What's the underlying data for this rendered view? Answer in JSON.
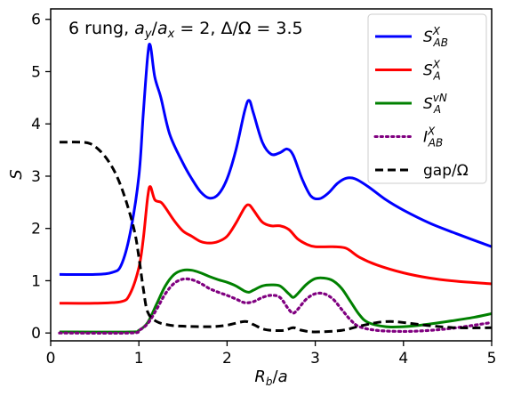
{
  "chart_data": {
    "type": "line",
    "title": "6 rung, a_y/a_x = 2, Δ/Ω = 3.5",
    "xlabel": "R_b/a",
    "ylabel": "S",
    "xlim": [
      0,
      5
    ],
    "ylim": [
      -0.15,
      6.2
    ],
    "xticks": [
      0,
      1,
      2,
      3,
      4,
      5
    ],
    "yticks": [
      0,
      1,
      2,
      3,
      4,
      5,
      6
    ],
    "grid": false,
    "legend_position": "top-right",
    "series": [
      {
        "name": "S^X_AB",
        "color": "#0000ff",
        "style": "solid",
        "points": [
          [
            0.1,
            1.12
          ],
          [
            0.5,
            1.12
          ],
          [
            0.7,
            1.16
          ],
          [
            0.8,
            1.3
          ],
          [
            0.9,
            1.9
          ],
          [
            1.0,
            3.0
          ],
          [
            1.05,
            4.2
          ],
          [
            1.1,
            5.3
          ],
          [
            1.13,
            5.5
          ],
          [
            1.18,
            4.9
          ],
          [
            1.25,
            4.5
          ],
          [
            1.35,
            3.8
          ],
          [
            1.5,
            3.25
          ],
          [
            1.6,
            2.95
          ],
          [
            1.7,
            2.7
          ],
          [
            1.8,
            2.58
          ],
          [
            1.9,
            2.65
          ],
          [
            2.0,
            2.95
          ],
          [
            2.1,
            3.5
          ],
          [
            2.2,
            4.25
          ],
          [
            2.25,
            4.45
          ],
          [
            2.3,
            4.2
          ],
          [
            2.4,
            3.65
          ],
          [
            2.5,
            3.42
          ],
          [
            2.6,
            3.45
          ],
          [
            2.68,
            3.52
          ],
          [
            2.75,
            3.4
          ],
          [
            2.85,
            2.95
          ],
          [
            2.95,
            2.62
          ],
          [
            3.05,
            2.57
          ],
          [
            3.15,
            2.68
          ],
          [
            3.25,
            2.86
          ],
          [
            3.35,
            2.96
          ],
          [
            3.45,
            2.95
          ],
          [
            3.6,
            2.8
          ],
          [
            3.8,
            2.55
          ],
          [
            4.0,
            2.35
          ],
          [
            4.3,
            2.1
          ],
          [
            4.6,
            1.9
          ],
          [
            5.0,
            1.65
          ]
        ]
      },
      {
        "name": "S^X_A",
        "color": "#ff0000",
        "style": "solid",
        "points": [
          [
            0.1,
            0.57
          ],
          [
            0.5,
            0.57
          ],
          [
            0.8,
            0.6
          ],
          [
            0.9,
            0.75
          ],
          [
            1.0,
            1.25
          ],
          [
            1.05,
            1.8
          ],
          [
            1.1,
            2.6
          ],
          [
            1.13,
            2.8
          ],
          [
            1.18,
            2.55
          ],
          [
            1.25,
            2.5
          ],
          [
            1.3,
            2.4
          ],
          [
            1.4,
            2.15
          ],
          [
            1.5,
            1.95
          ],
          [
            1.6,
            1.85
          ],
          [
            1.7,
            1.75
          ],
          [
            1.8,
            1.72
          ],
          [
            1.9,
            1.75
          ],
          [
            2.0,
            1.85
          ],
          [
            2.1,
            2.1
          ],
          [
            2.2,
            2.4
          ],
          [
            2.25,
            2.45
          ],
          [
            2.3,
            2.35
          ],
          [
            2.4,
            2.12
          ],
          [
            2.5,
            2.05
          ],
          [
            2.6,
            2.05
          ],
          [
            2.7,
            1.98
          ],
          [
            2.8,
            1.8
          ],
          [
            2.9,
            1.7
          ],
          [
            3.0,
            1.65
          ],
          [
            3.2,
            1.65
          ],
          [
            3.35,
            1.62
          ],
          [
            3.5,
            1.45
          ],
          [
            3.7,
            1.3
          ],
          [
            4.0,
            1.15
          ],
          [
            4.3,
            1.05
          ],
          [
            4.6,
            0.99
          ],
          [
            5.0,
            0.94
          ]
        ]
      },
      {
        "name": "S^vN_A",
        "color": "#008000",
        "style": "solid",
        "points": [
          [
            0.1,
            0.02
          ],
          [
            0.9,
            0.02
          ],
          [
            1.0,
            0.05
          ],
          [
            1.1,
            0.2
          ],
          [
            1.2,
            0.55
          ],
          [
            1.3,
            0.9
          ],
          [
            1.4,
            1.12
          ],
          [
            1.5,
            1.2
          ],
          [
            1.6,
            1.2
          ],
          [
            1.7,
            1.15
          ],
          [
            1.8,
            1.08
          ],
          [
            1.9,
            1.02
          ],
          [
            2.0,
            0.97
          ],
          [
            2.1,
            0.9
          ],
          [
            2.2,
            0.8
          ],
          [
            2.25,
            0.78
          ],
          [
            2.3,
            0.82
          ],
          [
            2.4,
            0.9
          ],
          [
            2.5,
            0.92
          ],
          [
            2.6,
            0.9
          ],
          [
            2.7,
            0.75
          ],
          [
            2.75,
            0.68
          ],
          [
            2.8,
            0.75
          ],
          [
            2.9,
            0.93
          ],
          [
            3.0,
            1.04
          ],
          [
            3.1,
            1.05
          ],
          [
            3.2,
            1.0
          ],
          [
            3.3,
            0.85
          ],
          [
            3.4,
            0.6
          ],
          [
            3.5,
            0.35
          ],
          [
            3.6,
            0.2
          ],
          [
            3.8,
            0.12
          ],
          [
            4.0,
            0.12
          ],
          [
            4.2,
            0.15
          ],
          [
            4.5,
            0.22
          ],
          [
            4.8,
            0.3
          ],
          [
            5.0,
            0.37
          ]
        ]
      },
      {
        "name": "I^X_AB",
        "color": "#800080",
        "style": "dotted",
        "points": [
          [
            0.1,
            0.0
          ],
          [
            0.9,
            0.0
          ],
          [
            1.0,
            0.05
          ],
          [
            1.1,
            0.18
          ],
          [
            1.2,
            0.45
          ],
          [
            1.3,
            0.75
          ],
          [
            1.4,
            0.95
          ],
          [
            1.5,
            1.03
          ],
          [
            1.6,
            1.02
          ],
          [
            1.7,
            0.95
          ],
          [
            1.8,
            0.85
          ],
          [
            1.9,
            0.78
          ],
          [
            2.0,
            0.72
          ],
          [
            2.1,
            0.65
          ],
          [
            2.2,
            0.58
          ],
          [
            2.3,
            0.6
          ],
          [
            2.4,
            0.68
          ],
          [
            2.5,
            0.72
          ],
          [
            2.6,
            0.68
          ],
          [
            2.7,
            0.45
          ],
          [
            2.75,
            0.38
          ],
          [
            2.8,
            0.45
          ],
          [
            2.9,
            0.65
          ],
          [
            3.0,
            0.75
          ],
          [
            3.1,
            0.75
          ],
          [
            3.2,
            0.65
          ],
          [
            3.3,
            0.45
          ],
          [
            3.4,
            0.25
          ],
          [
            3.5,
            0.12
          ],
          [
            3.7,
            0.05
          ],
          [
            4.0,
            0.03
          ],
          [
            4.3,
            0.05
          ],
          [
            4.6,
            0.1
          ],
          [
            5.0,
            0.2
          ]
        ]
      },
      {
        "name": "gap/Ω",
        "color": "#000000",
        "style": "dashed",
        "points": [
          [
            0.1,
            3.65
          ],
          [
            0.35,
            3.65
          ],
          [
            0.45,
            3.62
          ],
          [
            0.55,
            3.5
          ],
          [
            0.65,
            3.3
          ],
          [
            0.75,
            3.0
          ],
          [
            0.85,
            2.55
          ],
          [
            0.95,
            1.95
          ],
          [
            1.0,
            1.45
          ],
          [
            1.05,
            0.85
          ],
          [
            1.1,
            0.4
          ],
          [
            1.2,
            0.22
          ],
          [
            1.35,
            0.15
          ],
          [
            1.5,
            0.13
          ],
          [
            1.8,
            0.12
          ],
          [
            2.0,
            0.15
          ],
          [
            2.2,
            0.22
          ],
          [
            2.3,
            0.16
          ],
          [
            2.4,
            0.08
          ],
          [
            2.5,
            0.05
          ],
          [
            2.65,
            0.05
          ],
          [
            2.75,
            0.1
          ],
          [
            2.85,
            0.05
          ],
          [
            3.0,
            0.02
          ],
          [
            3.3,
            0.05
          ],
          [
            3.5,
            0.13
          ],
          [
            3.7,
            0.2
          ],
          [
            3.85,
            0.22
          ],
          [
            4.0,
            0.2
          ],
          [
            4.3,
            0.14
          ],
          [
            4.6,
            0.1
          ],
          [
            5.0,
            0.1
          ]
        ]
      }
    ]
  }
}
